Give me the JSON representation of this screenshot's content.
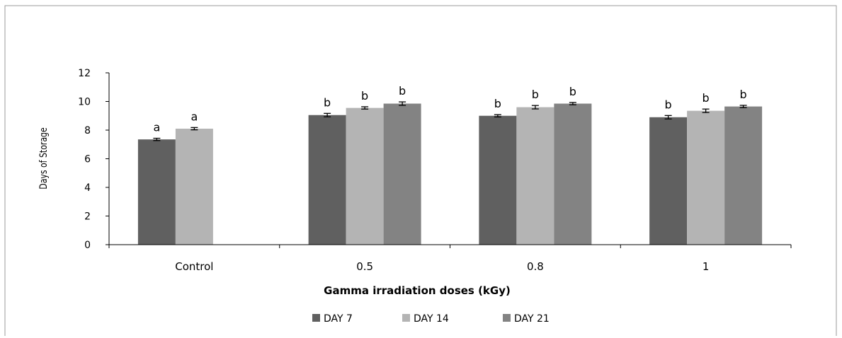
{
  "chart_data": {
    "type": "bar",
    "title": "",
    "xlabel": "Gamma irradiation  doses  (kGy)",
    "ylabel": "Days of Storage",
    "categories": [
      "Control",
      "0.5",
      "0.8",
      "1"
    ],
    "ylim": [
      0,
      12
    ],
    "yticks": [
      0,
      2,
      4,
      6,
      8,
      10,
      12
    ],
    "grid": false,
    "legend_position": "bottom",
    "series": [
      {
        "name": "DAY 7",
        "color": "#606060",
        "values": [
          7.35,
          9.05,
          9.0,
          8.9
        ],
        "errors": [
          0.08,
          0.12,
          0.08,
          0.12
        ],
        "labels": [
          "a",
          "b",
          "b",
          "b"
        ]
      },
      {
        "name": "DAY 14",
        "color": "#b4b4b4",
        "values": [
          8.1,
          9.55,
          9.6,
          9.35
        ],
        "errors": [
          0.08,
          0.08,
          0.12,
          0.12
        ],
        "labels": [
          "a",
          "b",
          "b",
          "b"
        ]
      },
      {
        "name": "DAY 21",
        "color": "#838383",
        "values": [
          null,
          9.85,
          9.85,
          9.65
        ],
        "errors": [
          null,
          0.12,
          0.08,
          0.08
        ],
        "labels": [
          null,
          "b",
          "b",
          "b"
        ]
      }
    ]
  }
}
